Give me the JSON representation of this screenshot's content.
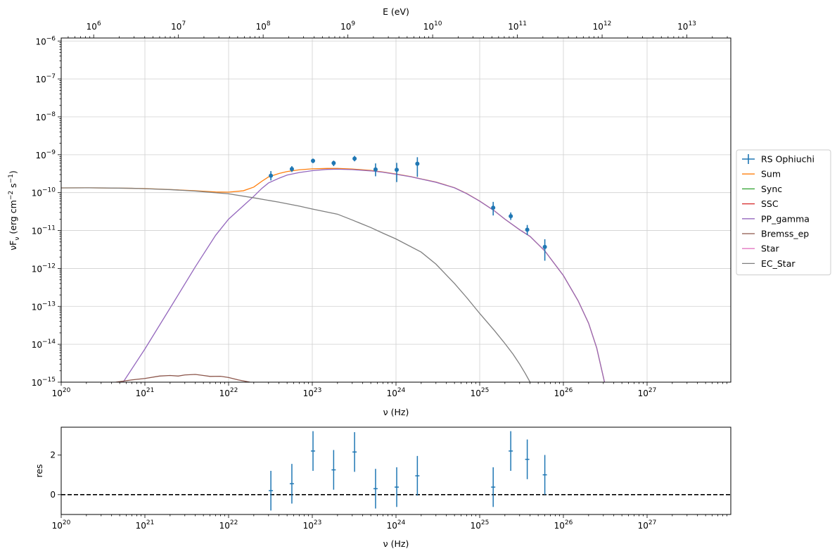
{
  "chart_data": [
    {
      "type": "line",
      "name": "sed-panel",
      "xlabel": "ν  (Hz)",
      "ylabel": "νF_ν   (erg cm^-2  s^-1)",
      "top_xlabel": "E (eV)",
      "xscale": "log",
      "yscale": "log",
      "xlim": [
        1e+20,
        1e+28
      ],
      "ylim": [
        1e-15,
        1.2e-06
      ],
      "top_xlim": [
        413600.0,
        33000000000000.0
      ],
      "grid": true,
      "legend_placement": "right-outside",
      "x_ticks": [
        {
          "exp": 20,
          "label": "10",
          "sup": "20"
        },
        {
          "exp": 21,
          "label": "10",
          "sup": "21"
        },
        {
          "exp": 22,
          "label": "10",
          "sup": "22"
        },
        {
          "exp": 23,
          "label": "10",
          "sup": "23"
        },
        {
          "exp": 24,
          "label": "10",
          "sup": "24"
        },
        {
          "exp": 25,
          "label": "10",
          "sup": "25"
        },
        {
          "exp": 26,
          "label": "10",
          "sup": "26"
        },
        {
          "exp": 27,
          "label": "10",
          "sup": "27"
        }
      ],
      "top_x_ticks": [
        {
          "exp": 6,
          "label": "10",
          "sup": "6"
        },
        {
          "exp": 7,
          "label": "10",
          "sup": "7"
        },
        {
          "exp": 8,
          "label": "10",
          "sup": "8"
        },
        {
          "exp": 9,
          "label": "10",
          "sup": "9"
        },
        {
          "exp": 10,
          "label": "10",
          "sup": "10"
        },
        {
          "exp": 11,
          "label": "10",
          "sup": "11"
        },
        {
          "exp": 12,
          "label": "10",
          "sup": "12"
        },
        {
          "exp": 13,
          "label": "10",
          "sup": "13"
        }
      ],
      "y_ticks": [
        {
          "exp": -15,
          "label": "10",
          "sup": "−15"
        },
        {
          "exp": -14,
          "label": "10",
          "sup": "−14"
        },
        {
          "exp": -13,
          "label": "10",
          "sup": "−13"
        },
        {
          "exp": -12,
          "label": "10",
          "sup": "−12"
        },
        {
          "exp": -11,
          "label": "10",
          "sup": "−11"
        },
        {
          "exp": -10,
          "label": "10",
          "sup": "−10"
        },
        {
          "exp": -9,
          "label": "10",
          "sup": "−9"
        },
        {
          "exp": -8,
          "label": "10",
          "sup": "−8"
        },
        {
          "exp": -7,
          "label": "10",
          "sup": "−7"
        },
        {
          "exp": -6,
          "label": "10",
          "sup": "−6"
        }
      ],
      "series": [
        {
          "name": "Sum",
          "color": "#ff7f0e",
          "points": [
            [
              1e+20,
              1.33e-10
            ],
            [
              2e+20,
              1.34e-10
            ],
            [
              4e+20,
              1.32e-10
            ],
            [
              7e+20,
              1.3e-10
            ],
            [
              1e+21,
              1.28e-10
            ],
            [
              2e+21,
              1.21e-10
            ],
            [
              4e+21,
              1.12e-10
            ],
            [
              7e+21,
              1.04e-10
            ],
            [
              1e+22,
              1.03e-10
            ],
            [
              1.5e+22,
              1.12e-10
            ],
            [
              2e+22,
              1.4e-10
            ],
            [
              2.5e+22,
              2e-10
            ],
            [
              3e+22,
              2.6e-10
            ],
            [
              4e+22,
              3.2e-10
            ],
            [
              5e+22,
              3.6e-10
            ],
            [
              7e+22,
              4e-10
            ],
            [
              1e+23,
              4.25e-10
            ],
            [
              1.5e+23,
              4.35e-10
            ],
            [
              2e+23,
              4.35e-10
            ],
            [
              3e+23,
              4.2e-10
            ],
            [
              5e+23,
              3.85e-10
            ],
            [
              7e+23,
              3.5e-10
            ],
            [
              1e+24,
              3.1e-10
            ],
            [
              1.5e+24,
              2.65e-10
            ],
            [
              2e+24,
              2.3e-10
            ],
            [
              3e+24,
              1.9e-10
            ],
            [
              5e+24,
              1.35e-10
            ],
            [
              7e+24,
              9.5e-11
            ],
            [
              1e+25,
              6e-11
            ],
            [
              1.5e+25,
              3.3e-11
            ],
            [
              2e+25,
              2e-11
            ],
            [
              3e+25,
              1.05e-11
            ],
            [
              4e+25,
              7e-12
            ],
            [
              6e+25,
              2.9e-12
            ],
            [
              1e+26,
              6.5e-13
            ],
            [
              1.5e+26,
              1.4e-13
            ],
            [
              2e+26,
              3.6e-14
            ],
            [
              2.5e+26,
              8e-15
            ],
            [
              3.1e+26,
              1e-15
            ]
          ]
        },
        {
          "name": "Sync",
          "color": "#2ca02c",
          "points": []
        },
        {
          "name": "SSC",
          "color": "#d62728",
          "points": []
        },
        {
          "name": "PP_gamma",
          "color": "#9467bd",
          "points": [
            [
              5.5e+20,
              1e-15
            ],
            [
              1e+21,
              7.5e-15
            ],
            [
              2e+21,
              9e-14
            ],
            [
              4e+21,
              1.1e-12
            ],
            [
              7e+21,
              7.5e-12
            ],
            [
              1e+22,
              2e-11
            ],
            [
              1.5e+22,
              4.5e-11
            ],
            [
              2e+22,
              8e-11
            ],
            [
              2.5e+22,
              1.3e-10
            ],
            [
              3e+22,
              1.8e-10
            ],
            [
              4e+22,
              2.4e-10
            ],
            [
              5e+22,
              2.9e-10
            ],
            [
              7e+22,
              3.4e-10
            ],
            [
              1e+23,
              3.8e-10
            ],
            [
              1.5e+23,
              4.1e-10
            ],
            [
              2e+23,
              4.15e-10
            ],
            [
              3e+23,
              4.05e-10
            ],
            [
              5e+23,
              3.75e-10
            ],
            [
              7e+23,
              3.45e-10
            ],
            [
              1e+24,
              3.05e-10
            ],
            [
              1.5e+24,
              2.62e-10
            ],
            [
              2e+24,
              2.28e-10
            ],
            [
              3e+24,
              1.88e-10
            ],
            [
              5e+24,
              1.34e-10
            ],
            [
              7e+24,
              9.4e-11
            ],
            [
              1e+25,
              5.95e-11
            ],
            [
              1.5e+25,
              3.3e-11
            ],
            [
              2e+25,
              2e-11
            ],
            [
              3e+25,
              1.05e-11
            ],
            [
              4e+25,
              7e-12
            ],
            [
              6e+25,
              2.9e-12
            ],
            [
              1e+26,
              6.5e-13
            ],
            [
              1.5e+26,
              1.4e-13
            ],
            [
              2e+26,
              3.6e-14
            ],
            [
              2.5e+26,
              8e-15
            ],
            [
              3.1e+26,
              1e-15
            ]
          ]
        },
        {
          "name": "Bremss_ep",
          "color": "#8c564b",
          "points": [
            [
              4.5e+20,
              1e-15
            ],
            [
              7e+20,
              1.15e-15
            ],
            [
              1e+21,
              1.25e-15
            ],
            [
              1.5e+21,
              1.45e-15
            ],
            [
              2e+21,
              1.5e-15
            ],
            [
              2.5e+21,
              1.45e-15
            ],
            [
              3e+21,
              1.55e-15
            ],
            [
              4e+21,
              1.6e-15
            ],
            [
              5e+21,
              1.5e-15
            ],
            [
              6e+21,
              1.42e-15
            ],
            [
              8e+21,
              1.43e-15
            ],
            [
              1e+22,
              1.33e-15
            ],
            [
              1.3e+22,
              1.15e-15
            ],
            [
              1.8e+22,
              1e-15
            ]
          ]
        },
        {
          "name": "Star",
          "color": "#e377c2",
          "points": []
        },
        {
          "name": "EC_Star",
          "color": "#7f7f7f",
          "points": [
            [
              1e+20,
              1.33e-10
            ],
            [
              2e+20,
              1.34e-10
            ],
            [
              4e+20,
              1.32e-10
            ],
            [
              7e+20,
              1.3e-10
            ],
            [
              1e+21,
              1.27e-10
            ],
            [
              2e+21,
              1.2e-10
            ],
            [
              4e+21,
              1.1e-10
            ],
            [
              1e+22,
              9.3e-11
            ],
            [
              2e+22,
              7.3e-11
            ],
            [
              4e+22,
              5.6e-11
            ],
            [
              7e+22,
              4.4e-11
            ],
            [
              1e+23,
              3.7e-11
            ],
            [
              2e+23,
              2.7e-11
            ],
            [
              3e+23,
              1.9e-11
            ],
            [
              5e+23,
              1.2e-11
            ],
            [
              7e+23,
              8.5e-12
            ],
            [
              1e+24,
              6e-12
            ],
            [
              2e+24,
              2.7e-12
            ],
            [
              3e+24,
              1.3e-12
            ],
            [
              5e+24,
              4e-13
            ],
            [
              7e+24,
              1.7e-13
            ],
            [
              1e+25,
              6.5e-14
            ],
            [
              1.5e+25,
              2.3e-14
            ],
            [
              2e+25,
              1.05e-14
            ],
            [
              2.5e+25,
              5.5e-15
            ],
            [
              3e+25,
              3e-15
            ],
            [
              3.5e+25,
              1.7e-15
            ],
            [
              4e+25,
              1e-15
            ]
          ]
        }
      ],
      "data_series": {
        "name": "RS Ophiuchi",
        "color": "#1f77b4",
        "points": [
          {
            "x": 3.2e+22,
            "y": 2.8e-10,
            "ylo": 2.1e-10,
            "yhi": 3.7e-10
          },
          {
            "x": 5.7e+22,
            "y": 4.2e-10,
            "ylo": 3.5e-10,
            "yhi": 5e-10
          },
          {
            "x": 1.02e+23,
            "y": 6.9e-10,
            "ylo": 6e-10,
            "yhi": 7.9e-10
          },
          {
            "x": 1.8e+23,
            "y": 6e-10,
            "ylo": 5e-10,
            "yhi": 7e-10
          },
          {
            "x": 3.2e+23,
            "y": 7.9e-10,
            "ylo": 6.7e-10,
            "yhi": 9.3e-10
          },
          {
            "x": 5.7e+23,
            "y": 4.1e-10,
            "ylo": 2.7e-10,
            "yhi": 5.9e-10
          },
          {
            "x": 1.02e+24,
            "y": 4e-10,
            "ylo": 1.9e-10,
            "yhi": 6.1e-10
          },
          {
            "x": 1.8e+24,
            "y": 5.8e-10,
            "ylo": 2.6e-10,
            "yhi": 8.6e-10
          },
          {
            "x": 1.45e+25,
            "y": 4e-11,
            "ylo": 2.5e-11,
            "yhi": 5.7e-11
          },
          {
            "x": 2.35e+25,
            "y": 2.4e-11,
            "ylo": 1.9e-11,
            "yhi": 3e-11
          },
          {
            "x": 3.7e+25,
            "y": 1.05e-11,
            "ylo": 7.6e-12,
            "yhi": 1.4e-11
          },
          {
            "x": 6e+25,
            "y": 3.7e-12,
            "ylo": 1.6e-12,
            "yhi": 5.9e-12
          }
        ]
      },
      "legend": [
        "RS Ophiuchi",
        "Sum",
        "Sync",
        "SSC",
        "PP_gamma",
        "Bremss_ep",
        "Star",
        "EC_Star"
      ]
    },
    {
      "type": "scatter",
      "name": "residual-panel",
      "xlabel": "ν  (Hz)",
      "ylabel": "res",
      "xscale": "log",
      "xlim": [
        1e+20,
        1e+28
      ],
      "ylim": [
        -1.0,
        3.4
      ],
      "reference_line": 0,
      "y_ticks": [
        {
          "value": 0,
          "label": "0"
        },
        {
          "value": 2,
          "label": "2"
        }
      ],
      "color": "#1f77b4",
      "points": [
        {
          "x": 3.2e+22,
          "y": 0.2
        },
        {
          "x": 5.7e+22,
          "y": 0.55
        },
        {
          "x": 1.02e+23,
          "y": 2.2
        },
        {
          "x": 1.8e+23,
          "y": 1.25
        },
        {
          "x": 3.2e+23,
          "y": 2.15
        },
        {
          "x": 5.7e+23,
          "y": 0.3
        },
        {
          "x": 1.02e+24,
          "y": 0.38
        },
        {
          "x": 1.8e+24,
          "y": 0.95
        },
        {
          "x": 1.45e+25,
          "y": 0.38
        },
        {
          "x": 2.35e+25,
          "y": 2.2
        },
        {
          "x": 3.7e+25,
          "y": 1.78
        },
        {
          "x": 6e+25,
          "y": 1.0
        }
      ],
      "error": 1.0
    }
  ]
}
